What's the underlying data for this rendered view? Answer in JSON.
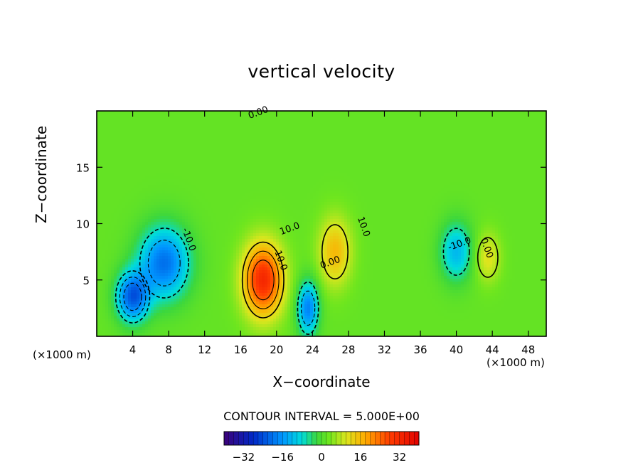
{
  "chart_data": {
    "type": "heatmap",
    "title": "vertical velocity",
    "xlabel": "X−coordinate",
    "ylabel": "Z−coordinate",
    "x_unit": "(×1000 m)",
    "y_unit": "(×1000 m)",
    "xlim": [
      0,
      50
    ],
    "ylim": [
      0,
      20
    ],
    "x_ticks": [
      4,
      8,
      12,
      16,
      20,
      24,
      28,
      32,
      36,
      40,
      44,
      48
    ],
    "y_ticks": [
      5,
      10,
      15
    ],
    "contour_interval": "CONTOUR INTERVAL = 5.000E+00",
    "contour_labels": [
      "0.00",
      "-10.0",
      "10.0",
      "10.0",
      "0.00",
      "10.0",
      "-10.0",
      "0.00"
    ],
    "colorbar": {
      "min": -40,
      "max": 40,
      "ticks": [
        -32,
        -16,
        0,
        16,
        32
      ]
    },
    "features": [
      {
        "label": "downdraft",
        "x": 7.5,
        "z": 6.5,
        "value": -22
      },
      {
        "label": "downdraft",
        "x": 4,
        "z": 3.5,
        "value": -24
      },
      {
        "label": "updraft",
        "x": 18.5,
        "z": 5,
        "value": 30
      },
      {
        "label": "downdraft",
        "x": 23.5,
        "z": 2.5,
        "value": -20
      },
      {
        "label": "updraft",
        "x": 26.5,
        "z": 7.5,
        "value": 14
      },
      {
        "label": "downdraft",
        "x": 40,
        "z": 7.5,
        "value": -14
      },
      {
        "label": "updraft",
        "x": 43.5,
        "z": 7,
        "value": 9
      }
    ]
  }
}
